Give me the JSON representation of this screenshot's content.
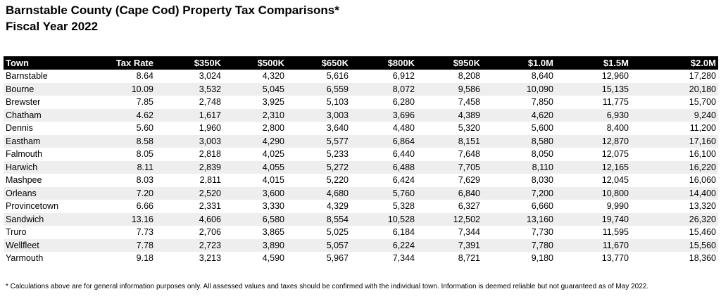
{
  "title": {
    "line1": "Barnstable County (Cape Cod) Property Tax Comparisons*",
    "line2": "Fiscal Year 2022"
  },
  "table": {
    "columns": [
      "Town",
      "Tax Rate",
      "$350K",
      "$500K",
      "$650K",
      "$800K",
      "$950K",
      "$1.0M",
      "$1.5M",
      "$2.0M"
    ],
    "rows": [
      [
        "Barnstable",
        "8.64",
        "3,024",
        "4,320",
        "5,616",
        "6,912",
        "8,208",
        "8,640",
        "12,960",
        "17,280"
      ],
      [
        "Bourne",
        "10.09",
        "3,532",
        "5,045",
        "6,559",
        "8,072",
        "9,586",
        "10,090",
        "15,135",
        "20,180"
      ],
      [
        "Brewster",
        "7.85",
        "2,748",
        "3,925",
        "5,103",
        "6,280",
        "7,458",
        "7,850",
        "11,775",
        "15,700"
      ],
      [
        "Chatham",
        "4.62",
        "1,617",
        "2,310",
        "3,003",
        "3,696",
        "4,389",
        "4,620",
        "6,930",
        "9,240"
      ],
      [
        "Dennis",
        "5.60",
        "1,960",
        "2,800",
        "3,640",
        "4,480",
        "5,320",
        "5,600",
        "8,400",
        "11,200"
      ],
      [
        "Eastham",
        "8.58",
        "3,003",
        "4,290",
        "5,577",
        "6,864",
        "8,151",
        "8,580",
        "12,870",
        "17,160"
      ],
      [
        "Falmouth",
        "8.05",
        "2,818",
        "4,025",
        "5,233",
        "6,440",
        "7,648",
        "8,050",
        "12,075",
        "16,100"
      ],
      [
        "Harwich",
        "8.11",
        "2,839",
        "4,055",
        "5,272",
        "6,488",
        "7,705",
        "8,110",
        "12,165",
        "16,220"
      ],
      [
        "Mashpee",
        "8.03",
        "2,811",
        "4,015",
        "5,220",
        "6,424",
        "7,629",
        "8,030",
        "12,045",
        "16,060"
      ],
      [
        "Orleans",
        "7.20",
        "2,520",
        "3,600",
        "4,680",
        "5,760",
        "6,840",
        "7,200",
        "10,800",
        "14,400"
      ],
      [
        "Provincetown",
        "6.66",
        "2,331",
        "3,330",
        "4,329",
        "5,328",
        "6,327",
        "6,660",
        "9,990",
        "13,320"
      ],
      [
        "Sandwich",
        "13.16",
        "4,606",
        "6,580",
        "8,554",
        "10,528",
        "12,502",
        "13,160",
        "19,740",
        "26,320"
      ],
      [
        "Truro",
        "7.73",
        "2,706",
        "3,865",
        "5,025",
        "6,184",
        "7,344",
        "7,730",
        "11,595",
        "15,460"
      ],
      [
        "Wellfleet",
        "7.78",
        "2,723",
        "3,890",
        "5,057",
        "6,224",
        "7,391",
        "7,780",
        "11,670",
        "15,560"
      ],
      [
        "Yarmouth",
        "9.18",
        "3,213",
        "4,590",
        "5,967",
        "7,344",
        "8,721",
        "9,180",
        "13,770",
        "18,360"
      ]
    ]
  },
  "footnote": "* Calculations above are for general information purposes only. All assessed values and taxes should be confirmed with the individual town. Information is deemed reliable but not guaranteed as of May 2022."
}
